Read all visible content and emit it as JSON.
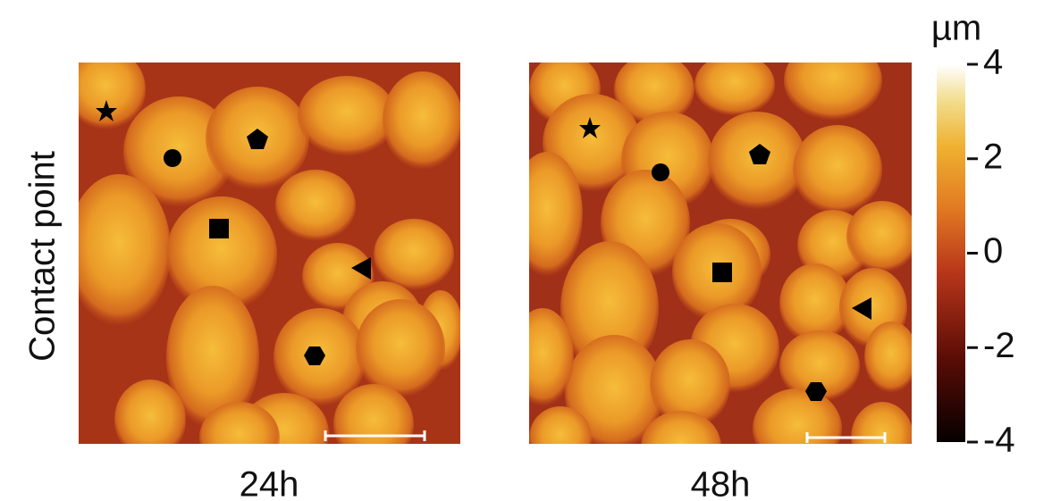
{
  "ylabel": "Contact point",
  "panels": [
    {
      "label": "24h"
    },
    {
      "label": "48h"
    }
  ],
  "colorbar": {
    "label": "µm",
    "lim": [
      -4,
      4
    ],
    "ticks": [
      4,
      2,
      0,
      -2,
      -4
    ]
  }
}
